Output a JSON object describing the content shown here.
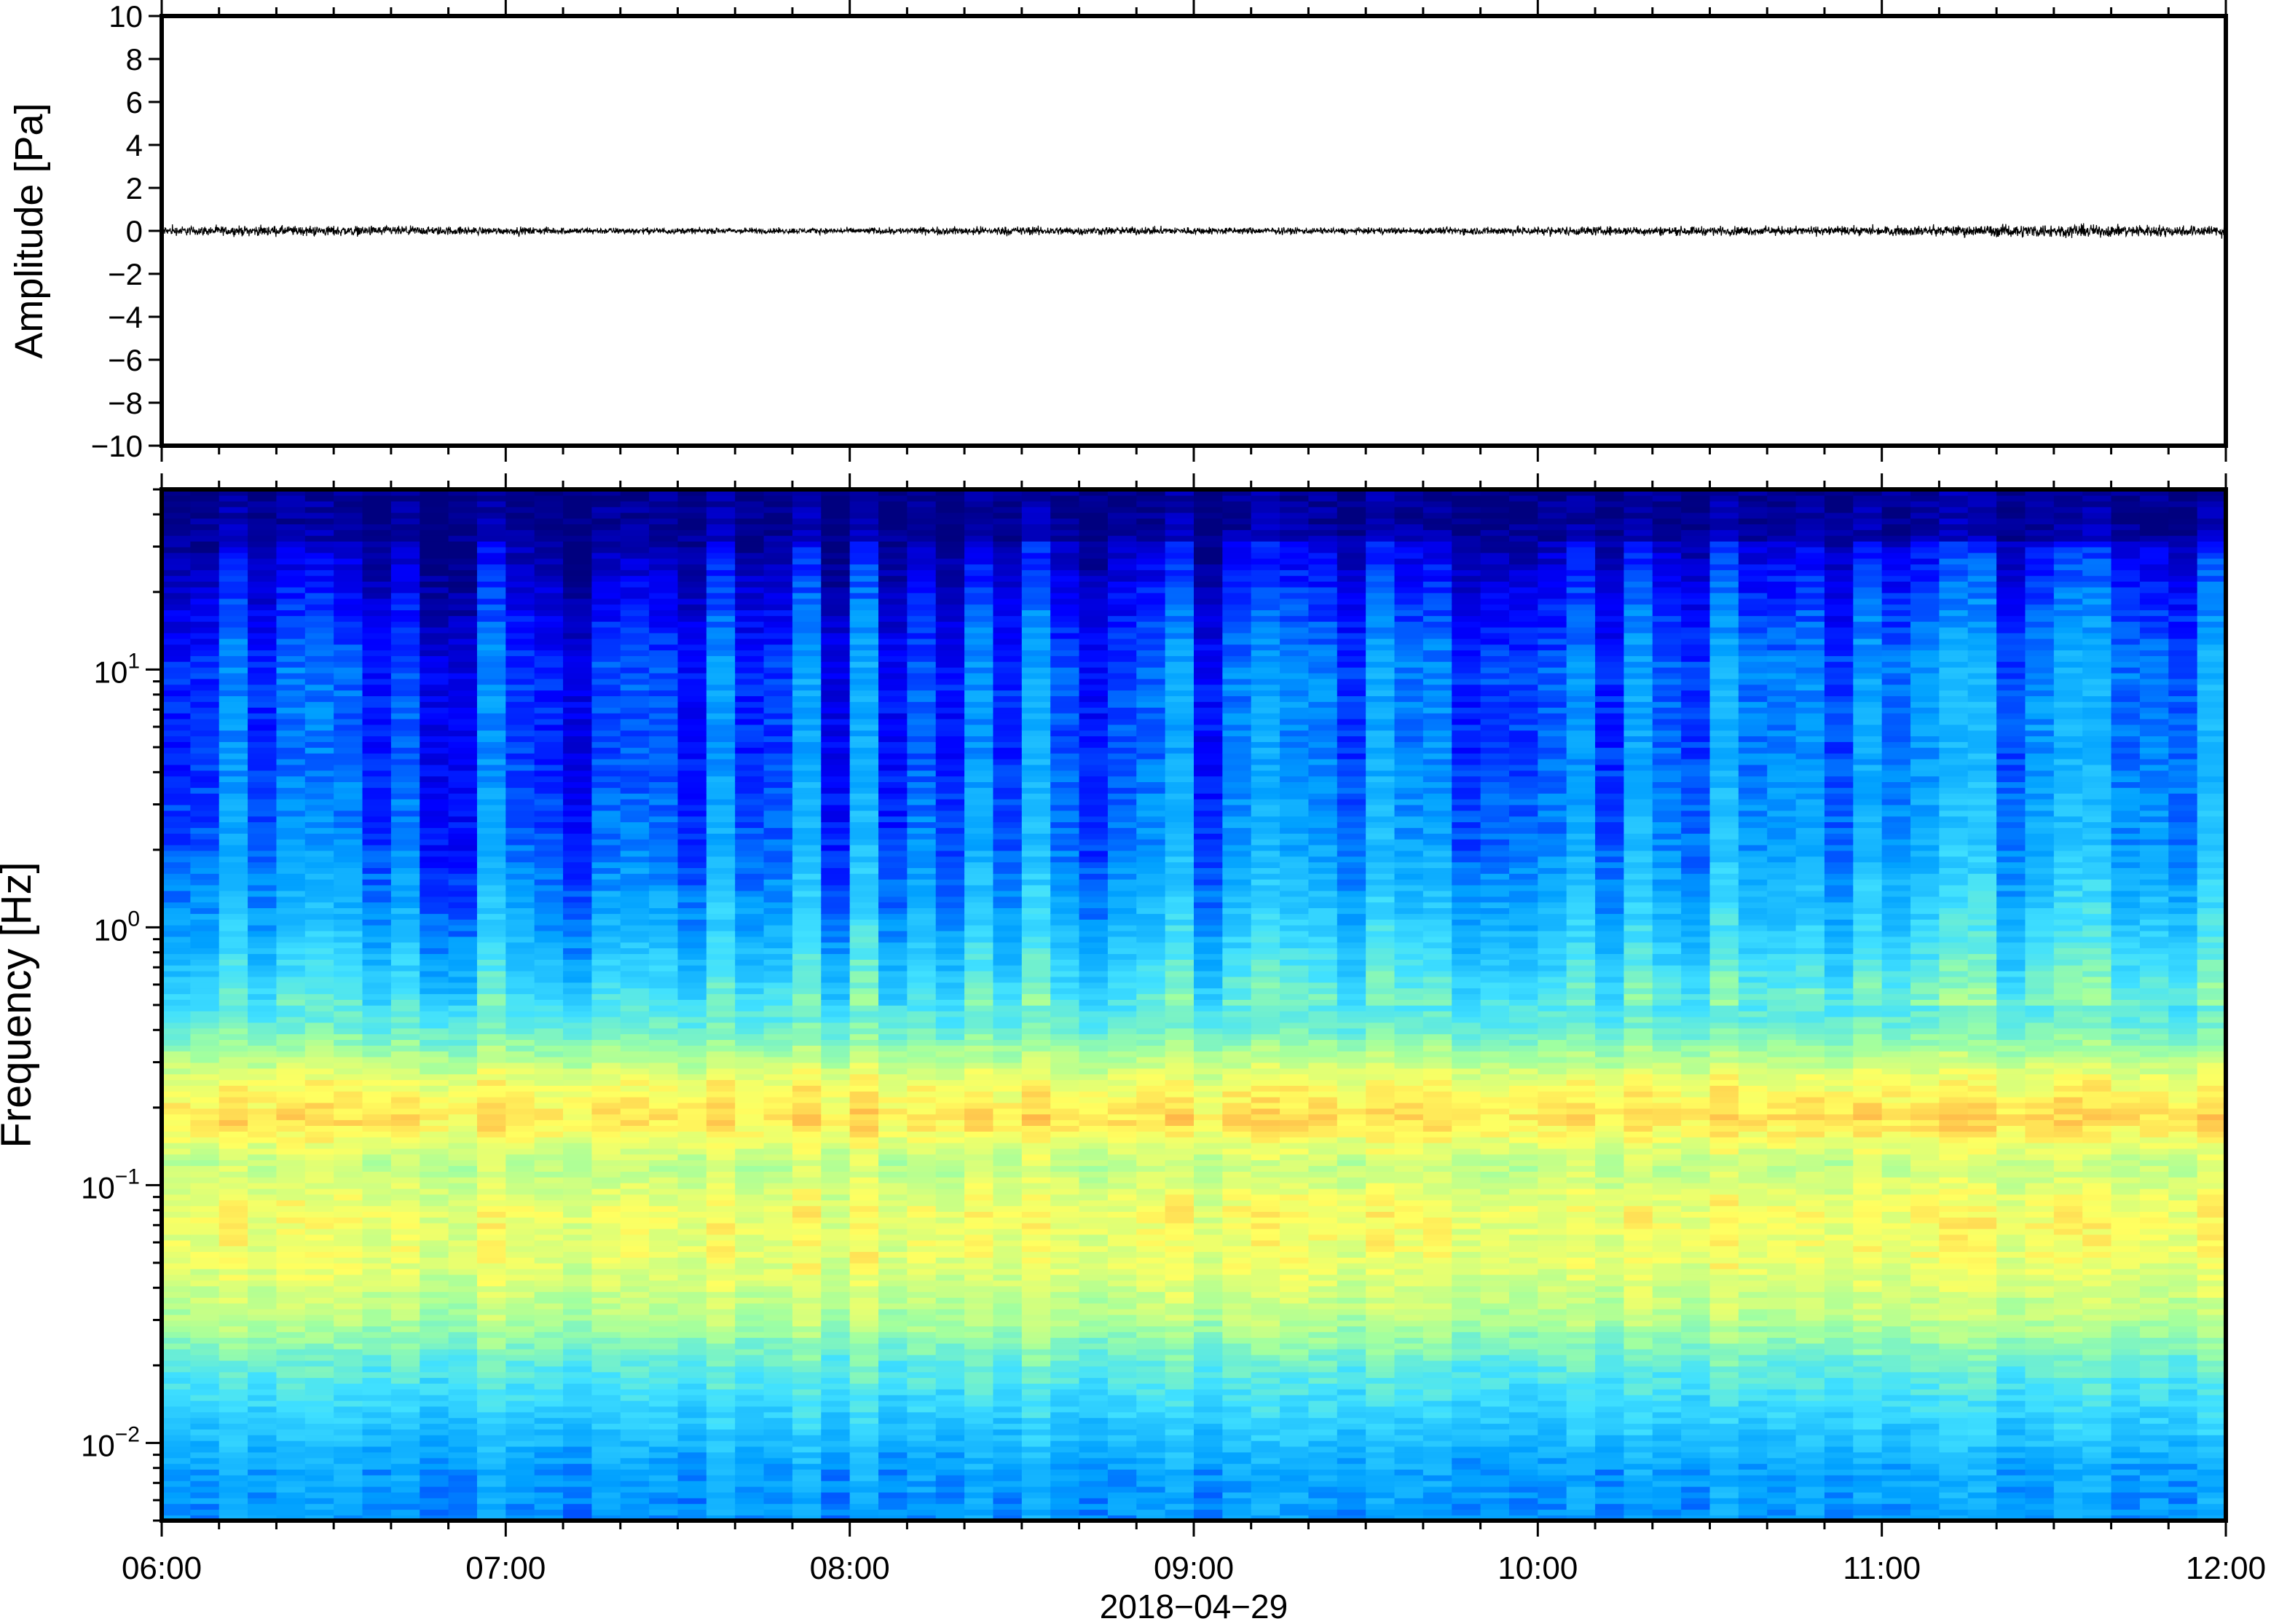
{
  "chart_data": [
    {
      "type": "line",
      "panel": "waveform",
      "ylabel": "Amplitude [Pa]",
      "ylim": [
        -10,
        10
      ],
      "yticks": [
        "10",
        "8",
        "6",
        "4",
        "2",
        "0",
        "−2",
        "−4",
        "−6",
        "−8",
        "−10"
      ],
      "ytick_values": [
        10,
        8,
        6,
        4,
        2,
        0,
        -2,
        -4,
        -6,
        -8,
        -10
      ],
      "series": [
        {
          "x_range": [
            "06:00",
            "12:00"
          ],
          "envelope_hours": [
            6.0,
            6.5,
            7.0,
            7.5,
            8.0,
            8.5,
            9.0,
            9.5,
            10.0,
            10.5,
            11.0,
            11.5,
            12.0
          ],
          "envelope_amplitude_pa": [
            0.3,
            0.35,
            0.25,
            0.2,
            0.2,
            0.3,
            0.25,
            0.2,
            0.3,
            0.3,
            0.3,
            0.45,
            0.35
          ]
        }
      ],
      "line_color": "#000000",
      "grid": false
    },
    {
      "type": "heatmap",
      "panel": "spectrogram",
      "ylabel": "Frequency [Hz]",
      "yscale": "log",
      "ylim_hz": [
        0.005,
        50
      ],
      "ytick_values": [
        0.01,
        0.1,
        1,
        10
      ],
      "yticks": [
        {
          "base": "10",
          "exp": "−2"
        },
        {
          "base": "10",
          "exp": "−1"
        },
        {
          "base": "10",
          "exp": "0"
        },
        {
          "base": "10",
          "exp": "1"
        }
      ],
      "xlabel": "2018−04−29",
      "xticks": [
        "06:00",
        "07:00",
        "08:00",
        "09:00",
        "10:00",
        "11:00",
        "12:00"
      ],
      "xtick_hours": [
        6,
        7,
        8,
        9,
        10,
        11,
        12
      ],
      "colormap": "jet",
      "colormap_stops": [
        "#00007f",
        "#0000ff",
        "#00a0ff",
        "#40e0ff",
        "#a0ffa0",
        "#ffff60",
        "#ffa040",
        "#ff5020"
      ],
      "profile_freq_hz": [
        0.005,
        0.008,
        0.012,
        0.02,
        0.03,
        0.05,
        0.08,
        0.12,
        0.18,
        0.25,
        0.4,
        0.7,
        1.0,
        2.0,
        5.0,
        10.0,
        20.0,
        35.0,
        50.0
      ],
      "profile_level": [
        0.28,
        0.3,
        0.38,
        0.48,
        0.6,
        0.68,
        0.7,
        0.62,
        0.76,
        0.7,
        0.5,
        0.38,
        0.32,
        0.24,
        0.2,
        0.2,
        0.12,
        0.03,
        0.02
      ],
      "grid": false
    }
  ]
}
